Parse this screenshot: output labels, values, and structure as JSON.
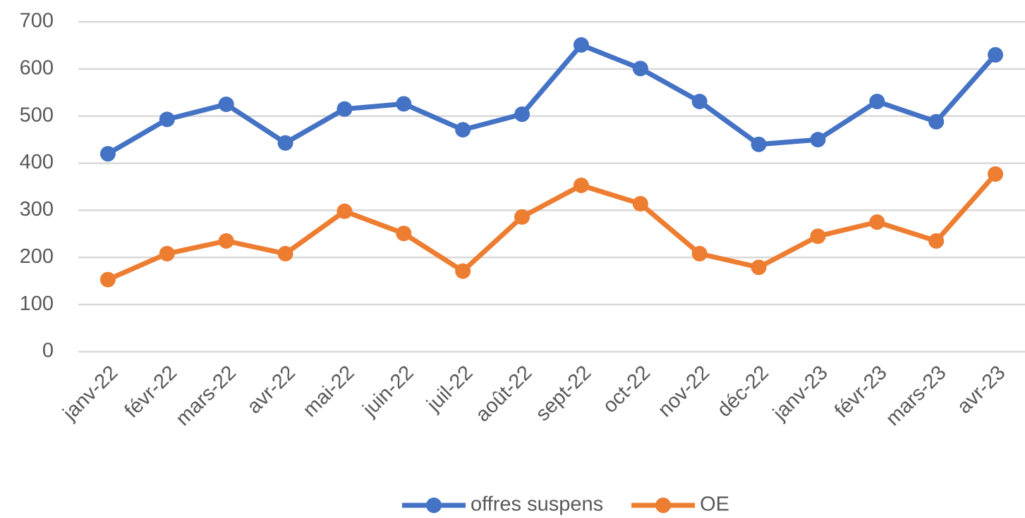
{
  "chart_data": {
    "type": "line",
    "categories": [
      "janv-22",
      "févr-22",
      "mars-22",
      "avr-22",
      "mai-22",
      "juin-22",
      "juil-22",
      "août-22",
      "sept-22",
      "oct-22",
      "nov-22",
      "déc-22",
      "janv-23",
      "févr-23",
      "mars-23",
      "avr-23"
    ],
    "series": [
      {
        "name": "offres suspens",
        "color": "#4472c4",
        "values": [
          420,
          493,
          525,
          443,
          515,
          526,
          471,
          504,
          651,
          601,
          531,
          440,
          450,
          531,
          488,
          630
        ]
      },
      {
        "name": "OE",
        "color": "#ed7d31",
        "values": [
          153,
          208,
          235,
          208,
          298,
          251,
          171,
          286,
          353,
          314,
          208,
          179,
          245,
          275,
          235,
          377
        ]
      }
    ],
    "ylim": [
      0,
      700
    ],
    "yticks": [
      0,
      100,
      200,
      300,
      400,
      500,
      600,
      700
    ],
    "grid": true,
    "legend": "bottom"
  }
}
